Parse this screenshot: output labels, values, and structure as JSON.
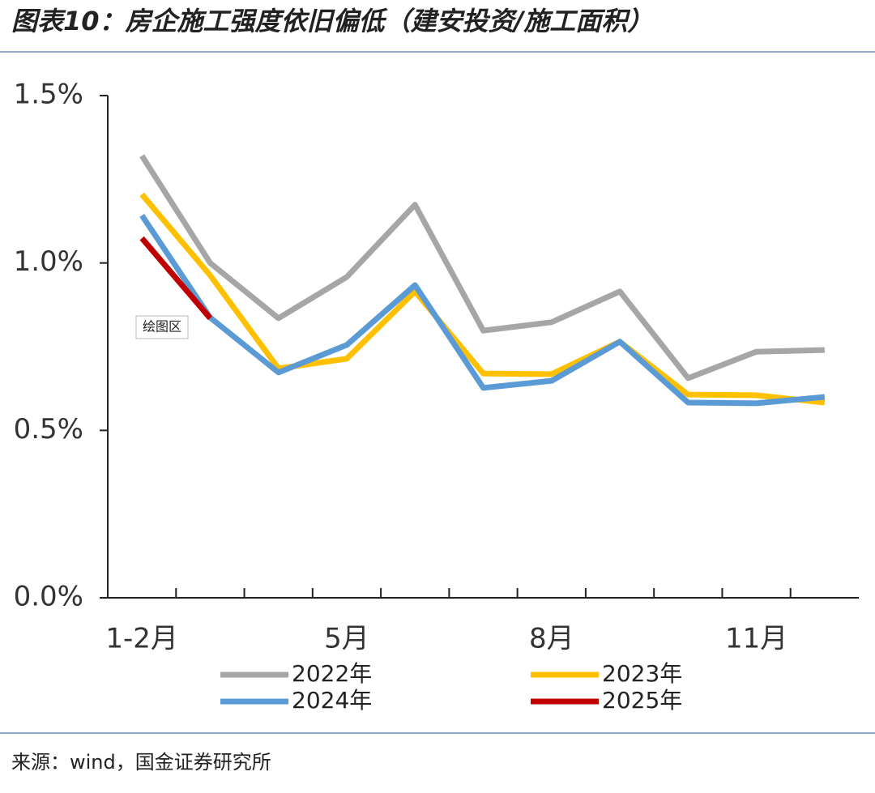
{
  "title": "图表10：房企施工强度依旧偏低（建安投资/施工面积）",
  "source": "来源：wind，国金证券研究所",
  "chart_data": {
    "type": "line",
    "categories": [
      "1-2月",
      null,
      null,
      "5月",
      null,
      null,
      "8月",
      null,
      null,
      "11月",
      null
    ],
    "series": [
      {
        "name": "2022年",
        "color": "#a6a6a6",
        "values": [
          1.32,
          1.0,
          0.835,
          0.958,
          1.174,
          0.798,
          0.823,
          0.915,
          0.656,
          0.735,
          0.74
        ]
      },
      {
        "name": "2023年",
        "color": "#ffc000",
        "values": [
          1.205,
          0.963,
          0.685,
          0.714,
          0.915,
          0.67,
          0.668,
          0.765,
          0.607,
          0.605,
          0.583
        ]
      },
      {
        "name": "2024年",
        "color": "#5b9bd5",
        "values": [
          1.142,
          0.837,
          0.673,
          0.755,
          0.934,
          0.627,
          0.648,
          0.765,
          0.583,
          0.581,
          0.6
        ]
      },
      {
        "name": "2025年",
        "color": "#c00000",
        "values": [
          1.074,
          0.835,
          null,
          null,
          null,
          null,
          null,
          null,
          null,
          null,
          null
        ]
      }
    ],
    "ylim": [
      0,
      1.5
    ],
    "yticks": [
      {
        "value": 0,
        "label": "0.0%"
      },
      {
        "value": 0.5,
        "label": "0.5%"
      },
      {
        "value": 1,
        "label": "1.0%"
      },
      {
        "value": 1.5,
        "label": "1.5%"
      }
    ],
    "annotation": "绘图区"
  }
}
